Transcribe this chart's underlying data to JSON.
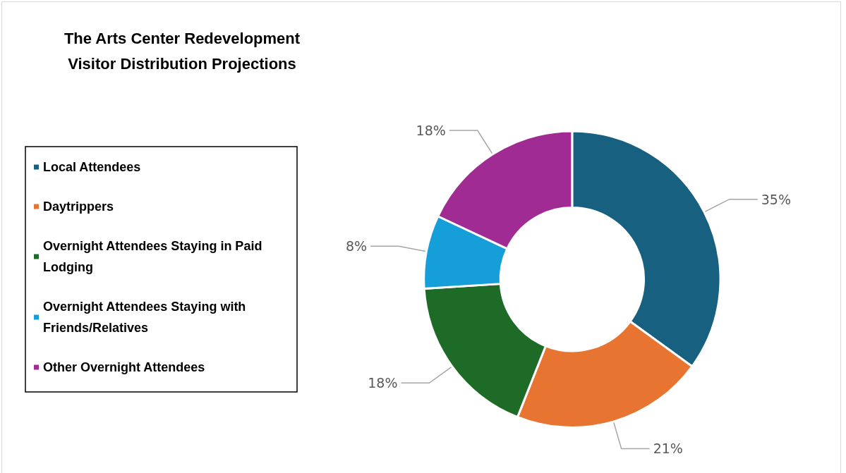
{
  "chart_data": {
    "type": "donut",
    "title": "The Arts Center Redevelopment\nVisitor Distribution Projections",
    "categories": [
      "Local Attendees",
      "Daytrippers",
      "Overnight Attendees Staying in Paid Lodging",
      "Overnight Attendees Staying with Friends/Relatives",
      "Other Overnight Attendees"
    ],
    "values": [
      35,
      21,
      18,
      8,
      18
    ],
    "colors": [
      "#17607f",
      "#e87432",
      "#1e6b28",
      "#159ed8",
      "#a02b92"
    ],
    "value_labels": [
      "35%",
      "21%",
      "18%",
      "8%",
      "18%"
    ],
    "legend": "left"
  }
}
